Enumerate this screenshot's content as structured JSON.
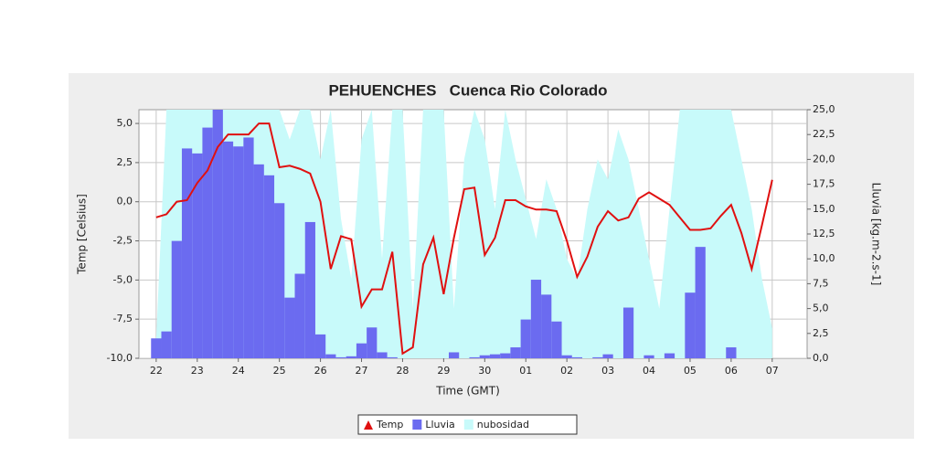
{
  "chart_data": {
    "type": "combo",
    "title": "PEHUENCHES   Cuenca Rio Colorado",
    "xlabel": "Time (GMT)",
    "ylabel": "Temp [Celsius]",
    "y2label": "Lluvia [kg.m-2.s-1]",
    "x": [
      0,
      0.25,
      0.5,
      0.75,
      1,
      1.25,
      1.5,
      1.75,
      2,
      2.25,
      2.5,
      2.75,
      3,
      3.25,
      3.5,
      3.75,
      4,
      4.25,
      4.5,
      4.75,
      5,
      5.25,
      5.5,
      5.75,
      6,
      6.25,
      6.5,
      6.75,
      7,
      7.25,
      7.5,
      7.75,
      8,
      8.25,
      8.5,
      8.75,
      9,
      9.25,
      9.5,
      9.75,
      10,
      10.25,
      10.5,
      10.75,
      11,
      11.25,
      11.5,
      11.75,
      12,
      12.25,
      12.5,
      12.75,
      13,
      13.25,
      13.5,
      13.75,
      14,
      14.25,
      14.5,
      14.75,
      15
    ],
    "xlim": [
      -0.42,
      15.85
    ],
    "xticks": [
      {
        "value": 0,
        "label": "22"
      },
      {
        "value": 1,
        "label": "23"
      },
      {
        "value": 2,
        "label": "24"
      },
      {
        "value": 3,
        "label": "25"
      },
      {
        "value": 4,
        "label": "26"
      },
      {
        "value": 5,
        "label": "27"
      },
      {
        "value": 6,
        "label": "28"
      },
      {
        "value": 7,
        "label": "29"
      },
      {
        "value": 8,
        "label": "30"
      },
      {
        "value": 9,
        "label": "01"
      },
      {
        "value": 10,
        "label": "02"
      },
      {
        "value": 11,
        "label": "03"
      },
      {
        "value": 12,
        "label": "04"
      },
      {
        "value": 13,
        "label": "05"
      },
      {
        "value": 14,
        "label": "06"
      },
      {
        "value": 15,
        "label": "07"
      }
    ],
    "ylim": [
      -10,
      5.88
    ],
    "yticks": [
      {
        "value": -10,
        "label": "-10,0"
      },
      {
        "value": -7.5,
        "label": "-7,5"
      },
      {
        "value": -5,
        "label": "-5,0"
      },
      {
        "value": -2.5,
        "label": "-2,5"
      },
      {
        "value": 0,
        "label": "0,0"
      },
      {
        "value": 2.5,
        "label": "2,5"
      },
      {
        "value": 5,
        "label": "5,0"
      }
    ],
    "y2lim": [
      0,
      25
    ],
    "y2ticks": [
      {
        "value": 0,
        "label": "0,0"
      },
      {
        "value": 2.5,
        "label": "2,5"
      },
      {
        "value": 5,
        "label": "5,0"
      },
      {
        "value": 7.5,
        "label": "7,5"
      },
      {
        "value": 10,
        "label": "10,0"
      },
      {
        "value": 12.5,
        "label": "12,5"
      },
      {
        "value": 15,
        "label": "15,0"
      },
      {
        "value": 17.5,
        "label": "17,5"
      },
      {
        "value": 20,
        "label": "20,0"
      },
      {
        "value": 22.5,
        "label": "22,5"
      },
      {
        "value": 25,
        "label": "25,0"
      }
    ],
    "grid": true,
    "series": [
      {
        "name": "Temp",
        "kind": "line",
        "color": "#e01010",
        "values": [
          -1.0,
          -0.8,
          0.0,
          0.1,
          1.2,
          2.0,
          3.5,
          4.3,
          4.3,
          4.3,
          5.0,
          5.0,
          2.2,
          2.3,
          2.1,
          1.8,
          0.0,
          -4.3,
          -2.2,
          -2.4,
          -6.7,
          -5.6,
          -5.6,
          -3.2,
          -9.7,
          -9.3,
          -4.0,
          -2.3,
          -5.9,
          -2.3,
          0.8,
          0.9,
          -3.4,
          -2.3,
          0.1,
          0.1,
          -0.3,
          -0.5,
          -0.5,
          -0.6,
          -2.5,
          -4.8,
          -3.5,
          -1.6,
          -0.6,
          -1.2,
          -1.0,
          0.2,
          0.6,
          0.2,
          -0.2,
          -1.0,
          -1.8,
          -1.8,
          -1.7,
          -0.9,
          -0.2,
          -2.0,
          -4.3,
          -1.5,
          1.4
        ]
      },
      {
        "name": "Lluvia",
        "kind": "bar",
        "axis": "y2",
        "color": "#6b6bf0",
        "values": [
          2.0,
          2.7,
          11.8,
          21.1,
          20.6,
          23.2,
          25.5,
          21.8,
          21.3,
          22.2,
          19.5,
          18.4,
          15.6,
          6.1,
          8.5,
          13.7,
          2.4,
          0.4,
          0.1,
          0.2,
          1.5,
          3.1,
          0.6,
          0.1,
          0,
          0,
          0,
          0,
          0,
          0.6,
          0,
          0.1,
          0.3,
          0.4,
          0.5,
          1.1,
          3.9,
          7.9,
          6.4,
          3.7,
          0.3,
          0.1,
          0,
          0.1,
          0.4,
          0,
          5.1,
          0,
          0.3,
          0,
          0.5,
          0,
          6.6,
          11.2,
          0,
          0,
          1.1,
          0,
          0,
          0,
          0
        ]
      },
      {
        "name": "nubosidad",
        "kind": "area",
        "axis": "y2",
        "color": "#c8fafa",
        "values": [
          2,
          25,
          25,
          25,
          25,
          25,
          25,
          25,
          25,
          25,
          25,
          25,
          25,
          22,
          25,
          25,
          20,
          25,
          14,
          8,
          22,
          25,
          10,
          25,
          25,
          5,
          25,
          25,
          25,
          5,
          20,
          25,
          22,
          15,
          25,
          20,
          16,
          12,
          18,
          15,
          10,
          8,
          15,
          20,
          18,
          23,
          20,
          15,
          10,
          5,
          15,
          25,
          25,
          25,
          25,
          25,
          25,
          20,
          15,
          8,
          3
        ]
      }
    ]
  }
}
